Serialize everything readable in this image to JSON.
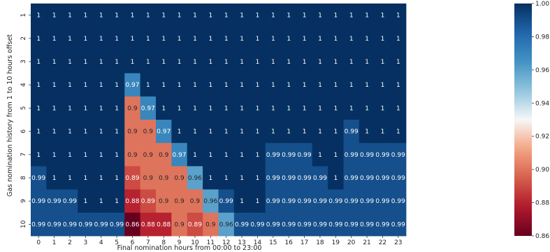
{
  "chart_data": {
    "type": "heatmap",
    "title": "",
    "xlabel": "Final nomination hours from 00:00 to 23:00",
    "ylabel": "Gas nomination history from 1 to 10 hours offset",
    "x_categories": [
      "0",
      "1",
      "2",
      "3",
      "4",
      "5",
      "6",
      "7",
      "8",
      "9",
      "10",
      "11",
      "12",
      "13",
      "14",
      "15",
      "16",
      "17",
      "18",
      "19",
      "20",
      "21",
      "22",
      "23"
    ],
    "y_categories": [
      "1",
      "2",
      "3",
      "4",
      "5",
      "6",
      "7",
      "8",
      "9",
      "10"
    ],
    "cell_labels": [
      [
        "1",
        "1",
        "1",
        "1",
        "1",
        "1",
        "1",
        "1",
        "1",
        "1",
        "1",
        "1",
        "1",
        "1",
        "1",
        "1",
        "1",
        "1",
        "1",
        "1",
        "1",
        "1",
        "1",
        "1"
      ],
      [
        "1",
        "1",
        "1",
        "1",
        "1",
        "1",
        "1",
        "1",
        "1",
        "1",
        "1",
        "1",
        "1",
        "1",
        "1",
        "1",
        "1",
        "1",
        "1",
        "1",
        "1",
        "1",
        "1",
        "1"
      ],
      [
        "1",
        "1",
        "1",
        "1",
        "1",
        "1",
        "1",
        "1",
        "1",
        "1",
        "1",
        "1",
        "1",
        "1",
        "1",
        "1",
        "1",
        "1",
        "1",
        "1",
        "1",
        "1",
        "1",
        "1"
      ],
      [
        "1",
        "1",
        "1",
        "1",
        "1",
        "1",
        "0.97",
        "1",
        "1",
        "1",
        "1",
        "1",
        "1",
        "1",
        "1",
        "1",
        "1",
        "1",
        "1",
        "1",
        "1",
        "1",
        "1",
        "1"
      ],
      [
        "1",
        "1",
        "1",
        "1",
        "1",
        "1",
        "0.9",
        "0.97",
        "1",
        "1",
        "1",
        "1",
        "1",
        "1",
        "1",
        "1",
        "1",
        "1",
        "1",
        "1",
        "1",
        "1",
        "1",
        "1"
      ],
      [
        "1",
        "1",
        "1",
        "1",
        "1",
        "1",
        "0.9",
        "0.9",
        "0.97",
        "1",
        "1",
        "1",
        "1",
        "1",
        "1",
        "1",
        "1",
        "1",
        "1",
        "1",
        "0.99",
        "1",
        "1",
        "1"
      ],
      [
        "1",
        "1",
        "1",
        "1",
        "1",
        "1",
        "0.9",
        "0.9",
        "0.9",
        "0.97",
        "1",
        "1",
        "1",
        "1",
        "1",
        "0.99",
        "0.99",
        "0.99",
        "1",
        "1",
        "0.99",
        "0.99",
        "0.99",
        "0.99"
      ],
      [
        "0.99",
        "1",
        "1",
        "1",
        "1",
        "1",
        "0.89",
        "0.9",
        "0.9",
        "0.9",
        "0.96",
        "1",
        "1",
        "1",
        "1",
        "0.99",
        "0.99",
        "0.99",
        "0.99",
        "1",
        "0.99",
        "0.99",
        "0.99",
        "0.99"
      ],
      [
        "0.99",
        "0.99",
        "0.99",
        "1",
        "1",
        "1",
        "0.88",
        "0.89",
        "0.9",
        "0.9",
        "0.9",
        "0.96",
        "0.99",
        "1",
        "1",
        "0.99",
        "0.99",
        "0.99",
        "0.99",
        "0.99",
        "0.99",
        "0.99",
        "0.99",
        "0.99"
      ],
      [
        "0.99",
        "0.99",
        "0.99",
        "0.99",
        "0.99",
        "0.99",
        "0.86",
        "0.88",
        "0.88",
        "0.9",
        "0.89",
        "0.9",
        "0.96",
        "0.99",
        "0.99",
        "0.99",
        "0.99",
        "0.99",
        "0.99",
        "0.99",
        "0.99",
        "0.99",
        "0.99",
        "0.99"
      ]
    ],
    "colorbar": {
      "colormap": "RdBu",
      "vmin": 0.86,
      "vmax": 1.0,
      "ticks": [
        "0.86",
        "0.88",
        "0.90",
        "0.92",
        "0.94",
        "0.96",
        "0.98",
        "1.00"
      ]
    }
  }
}
